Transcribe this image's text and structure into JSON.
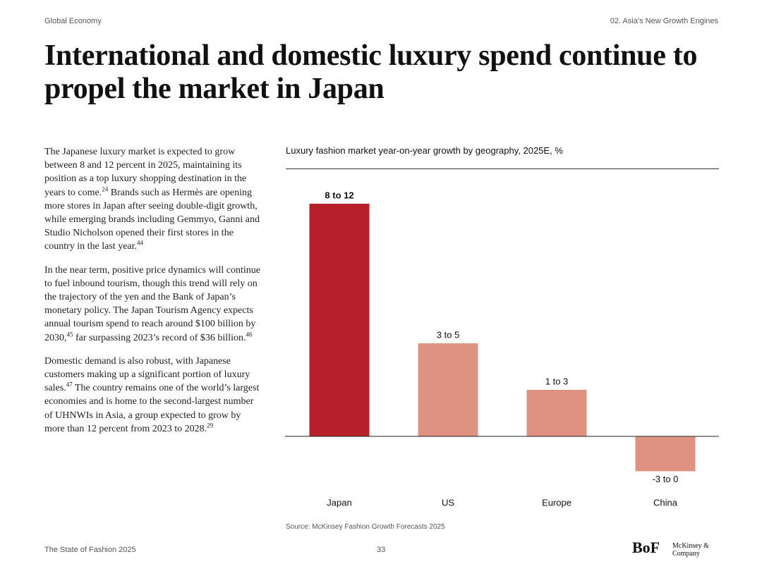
{
  "header": {
    "left": "Global Economy",
    "right": "02. Asia’s New Growth Engines"
  },
  "title": "International and domestic luxury spend continue to propel the market in Japan",
  "body": {
    "paragraphs": [
      [
        "The Japanese luxury market is expected to grow between 8 and 12 percent in 2025, maintaining its position as a top luxury shopping destination in the years to come.",
        "24",
        " Brands such as Hermès are opening more stores in Japan after seeing double-digit growth, while emerging brands including Gemmyo, Ganni and Studio Nicholson opened their first stores in the country in the last year.",
        "44"
      ],
      [
        "In the near term, positive price dynamics will continue to fuel inbound tourism, though this trend will rely on the trajectory of the yen and the Bank of Japan’s monetary policy. The Japan Tourism Agency expects annual tourism spend to reach around $100 billion by 2030,",
        "45",
        " far surpassing 2023’s record of $36 billion.",
        "46"
      ],
      [
        "Domestic demand is also robust, with Japanese customers making up a significant portion of luxury sales.",
        "47",
        " The country remains one of the world’s largest economies and is home to the second-largest number of UHNWIs in Asia, a group expected to grow by more than 12 percent from 2023 to 2028.",
        "29"
      ]
    ]
  },
  "chart_data": {
    "type": "bar",
    "title": "Luxury fashion market year-on-year growth by geography, 2025E, %",
    "categories": [
      "Japan",
      "US",
      "Europe",
      "China"
    ],
    "values": [
      10,
      4,
      2,
      -1.5
    ],
    "value_labels": [
      "8 to 12",
      "3 to 5",
      "1 to 3",
      "-3 to 0"
    ],
    "colors": [
      "#b71f2a",
      "#e09282",
      "#e09282",
      "#e09282"
    ],
    "ylim": [
      -2,
      11
    ],
    "source": "Source: McKinsey Fashion Growth Forecasts 2025"
  },
  "footer": {
    "left": "The State of Fashion 2025",
    "page": "33",
    "logo1": "BoF",
    "logo2": "McKinsey & Company"
  }
}
